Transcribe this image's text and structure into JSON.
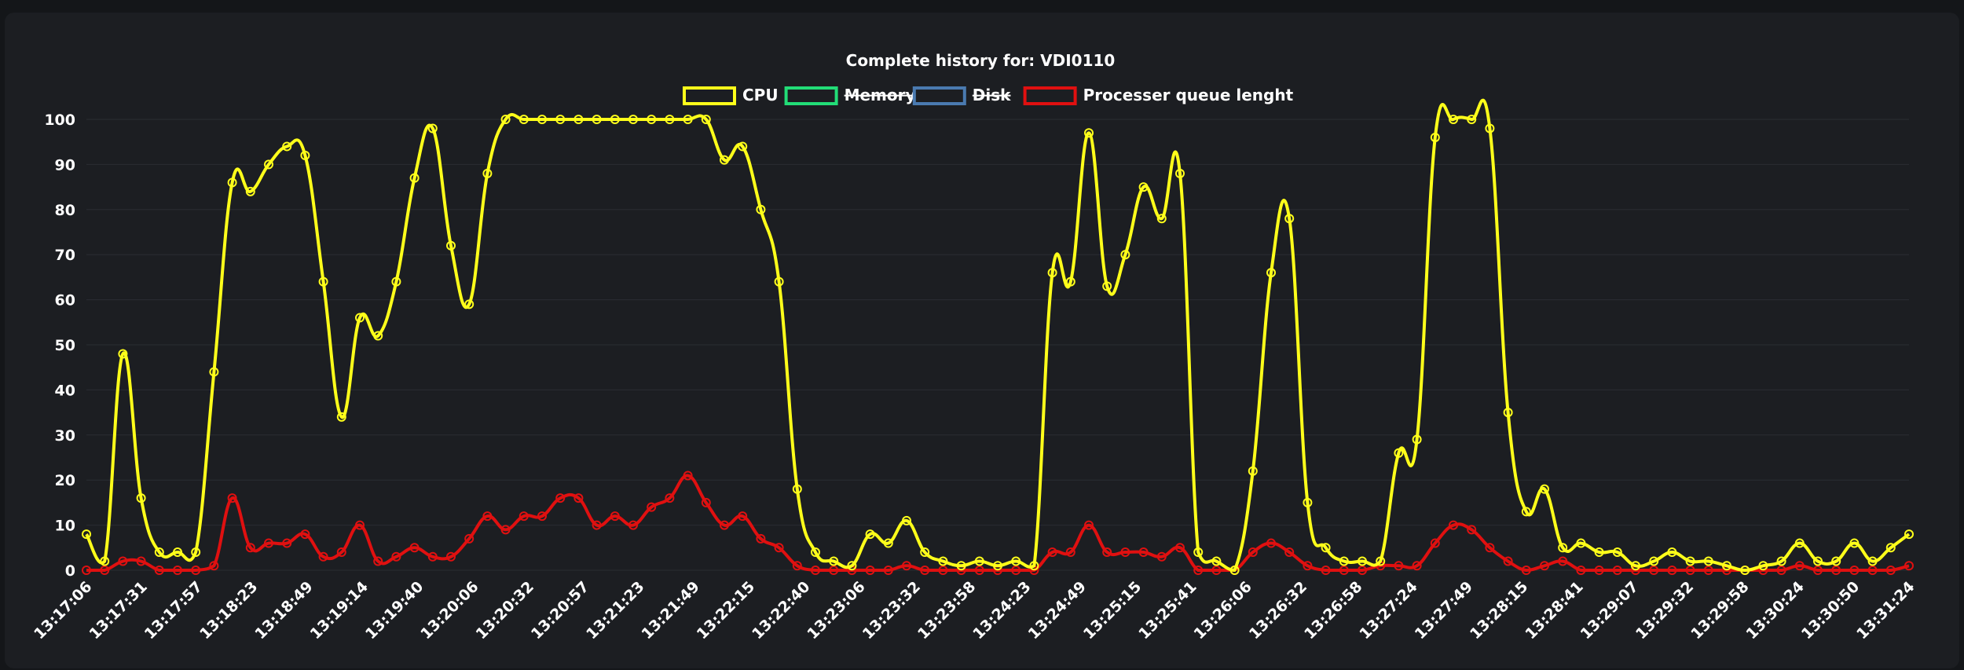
{
  "chart_data": {
    "type": "line",
    "title": "Complete history for: VDI0110",
    "legend_position": "top-center",
    "ylim": [
      0,
      100
    ],
    "yticks": [
      0,
      10,
      20,
      30,
      40,
      50,
      60,
      70,
      80,
      90,
      100
    ],
    "xtick_labels": [
      "13:17:06",
      "13:17:31",
      "13:17:57",
      "13:18:23",
      "13:18:49",
      "13:19:14",
      "13:19:40",
      "13:20:06",
      "13:20:32",
      "13:20:57",
      "13:21:23",
      "13:21:49",
      "13:22:15",
      "13:22:40",
      "13:23:06",
      "13:23:32",
      "13:23:58",
      "13:24:23",
      "13:24:49",
      "13:25:15",
      "13:25:41",
      "13:26:06",
      "13:26:32",
      "13:26:58",
      "13:27:24",
      "13:27:49",
      "13:28:15",
      "13:28:41",
      "13:29:07",
      "13:29:32",
      "13:29:58",
      "13:30:24",
      "13:30:50",
      "13:31:24"
    ],
    "point_count": 101,
    "series": [
      {
        "name": "CPU",
        "color": "#ffff1a",
        "hidden": false,
        "values": [
          8,
          2,
          48,
          16,
          4,
          4,
          4,
          44,
          86,
          84,
          90,
          94,
          92,
          64,
          34,
          56,
          52,
          64,
          87,
          98,
          72,
          59,
          88,
          100,
          100,
          100,
          100,
          100,
          100,
          100,
          100,
          100,
          100,
          100,
          100,
          91,
          94,
          80,
          64,
          18,
          4,
          2,
          1,
          8,
          6,
          11,
          4,
          2,
          1,
          2,
          1,
          2,
          1,
          66,
          64,
          97,
          63,
          70,
          85,
          78,
          88,
          4,
          2,
          0,
          22,
          66,
          78,
          15,
          5,
          2,
          2,
          2,
          26,
          29,
          96,
          100,
          100,
          98,
          35,
          13,
          18,
          5,
          6,
          4,
          4,
          1,
          2,
          4,
          2,
          2,
          1,
          0,
          1,
          2,
          6,
          2,
          2,
          6,
          2,
          5,
          8
        ]
      },
      {
        "name": "Memory",
        "color": "#22dd77",
        "hidden": true,
        "values": []
      },
      {
        "name": "Disk",
        "color": "#4a7ab0",
        "hidden": true,
        "values": []
      },
      {
        "name": "Processer queue lenght",
        "color": "#e01010",
        "hidden": false,
        "values": [
          0,
          0,
          2,
          2,
          0,
          0,
          0,
          1,
          16,
          5,
          6,
          6,
          8,
          3,
          4,
          10,
          2,
          3,
          5,
          3,
          3,
          7,
          12,
          9,
          12,
          12,
          16,
          16,
          10,
          12,
          10,
          14,
          16,
          21,
          15,
          10,
          12,
          7,
          5,
          1,
          0,
          0,
          0,
          0,
          0,
          1,
          0,
          0,
          0,
          0,
          0,
          0,
          0,
          4,
          4,
          10,
          4,
          4,
          4,
          3,
          5,
          0,
          0,
          0,
          4,
          6,
          4,
          1,
          0,
          0,
          0,
          1,
          1,
          1,
          6,
          10,
          9,
          5,
          2,
          0,
          1,
          2,
          0,
          0,
          0,
          0,
          0,
          0,
          0,
          0,
          0,
          0,
          0,
          0,
          1,
          0,
          0,
          0,
          0,
          0,
          1
        ]
      }
    ]
  }
}
